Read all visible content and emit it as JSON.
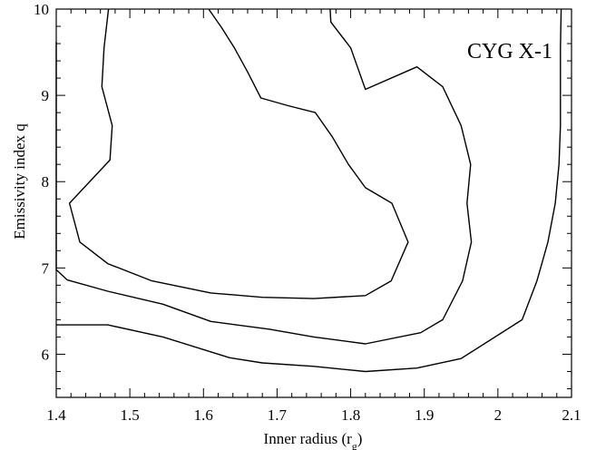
{
  "chart_data": {
    "type": "line",
    "title": "",
    "annotation": "CYG X-1",
    "xlabel": "Inner radius (r",
    "xlabel_sub": "g",
    "xlabel_close": ")",
    "ylabel": "Emissivity index q",
    "xlim": [
      1.4,
      2.1
    ],
    "ylim": [
      5.5,
      10.0
    ],
    "xticks": [
      1.4,
      1.5,
      1.6,
      1.7,
      1.8,
      1.9,
      2.0,
      2.1
    ],
    "xtick_labels": [
      "1.4",
      "1.5",
      "1.6",
      "1.7",
      "1.8",
      "1.9",
      "2",
      "2.1"
    ],
    "yticks": [
      6,
      7,
      8,
      9,
      10
    ],
    "ytick_labels": [
      "6",
      "7",
      "8",
      "9",
      "10"
    ],
    "grid": false,
    "line_color": "#000000",
    "series": [
      {
        "points": [
          [
            1.471,
            10.0
          ],
          [
            1.465,
            9.55
          ],
          [
            1.462,
            9.1
          ],
          [
            1.476,
            8.65
          ],
          [
            1.473,
            8.25
          ],
          [
            1.418,
            7.75
          ],
          [
            1.432,
            7.3
          ],
          [
            1.47,
            7.05
          ],
          [
            1.53,
            6.85
          ],
          [
            1.61,
            6.71
          ],
          [
            1.68,
            6.66
          ],
          [
            1.75,
            6.645
          ],
          [
            1.82,
            6.68
          ],
          [
            1.855,
            6.85
          ],
          [
            1.878,
            7.3
          ],
          [
            1.856,
            7.75
          ],
          [
            1.82,
            7.93
          ],
          [
            1.797,
            8.2
          ],
          [
            1.775,
            8.52
          ],
          [
            1.752,
            8.8
          ],
          [
            1.715,
            8.88
          ],
          [
            1.678,
            8.97
          ],
          [
            1.66,
            9.27
          ],
          [
            1.642,
            9.55
          ],
          [
            1.625,
            9.78
          ],
          [
            1.607,
            10.0
          ]
        ]
      },
      {
        "points": [
          [
            1.4,
            9.62
          ],
          [
            1.4,
            6.98
          ],
          [
            1.415,
            6.86
          ],
          [
            1.47,
            6.73
          ],
          [
            1.545,
            6.58
          ],
          [
            1.61,
            6.38
          ],
          [
            1.69,
            6.29
          ],
          [
            1.75,
            6.2
          ],
          [
            1.82,
            6.12
          ],
          [
            1.895,
            6.25
          ],
          [
            1.925,
            6.4
          ],
          [
            1.952,
            6.85
          ],
          [
            1.964,
            7.3
          ],
          [
            1.958,
            7.75
          ],
          [
            1.963,
            8.2
          ],
          [
            1.95,
            8.65
          ],
          [
            1.925,
            9.1
          ],
          [
            1.89,
            9.33
          ],
          [
            1.82,
            9.07
          ],
          [
            1.8,
            9.55
          ],
          [
            1.773,
            9.85
          ],
          [
            1.772,
            10.0
          ]
        ]
      },
      {
        "points": [
          [
            1.4,
            6.34
          ],
          [
            1.47,
            6.34
          ],
          [
            1.545,
            6.2
          ],
          [
            1.635,
            5.96
          ],
          [
            1.68,
            5.9
          ],
          [
            1.75,
            5.86
          ],
          [
            1.82,
            5.8
          ],
          [
            1.89,
            5.84
          ],
          [
            1.95,
            5.95
          ],
          [
            2.033,
            6.4
          ],
          [
            2.053,
            6.85
          ],
          [
            2.068,
            7.3
          ],
          [
            2.078,
            7.75
          ],
          [
            2.083,
            8.2
          ],
          [
            2.085,
            8.65
          ],
          [
            2.085,
            9.1
          ],
          [
            2.085,
            9.55
          ],
          [
            2.086,
            10.0
          ]
        ]
      }
    ]
  }
}
